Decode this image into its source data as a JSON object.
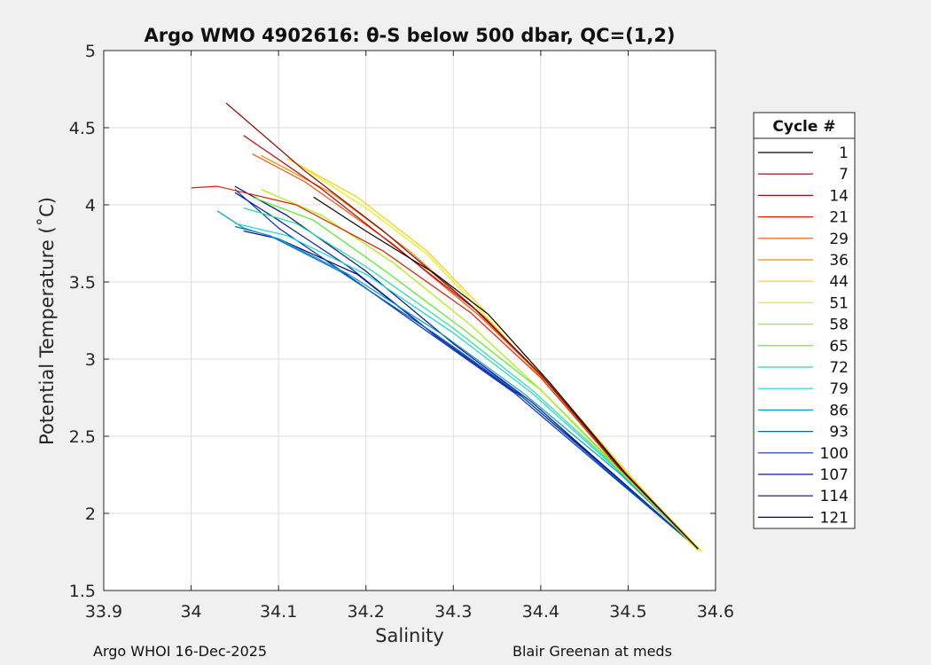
{
  "chart_data": {
    "type": "line",
    "title": "Argo WMO 4902616: θ-S below 500 dbar,  QC=(1,2)",
    "xlabel": "Salinity",
    "ylabel": "Potential Temperature (˚C)",
    "xlim": [
      33.9,
      34.6
    ],
    "ylim": [
      1.5,
      5
    ],
    "xticks": [
      "33.9",
      "34",
      "34.1",
      "34.2",
      "34.3",
      "34.4",
      "34.5",
      "34.6"
    ],
    "yticks": [
      "1.5",
      "2",
      "2.5",
      "3",
      "3.5",
      "4",
      "4.5",
      "5"
    ],
    "grid": true,
    "legend": {
      "title": "Cycle #",
      "placement": "outside-right",
      "entries": [
        {
          "label": "1",
          "color": "#000000"
        },
        {
          "label": "7",
          "color": "#8b0000"
        },
        {
          "label": "14",
          "color": "#c80000"
        },
        {
          "label": "21",
          "color": "#e01b00"
        },
        {
          "label": "29",
          "color": "#ee5200"
        },
        {
          "label": "36",
          "color": "#f08a00"
        },
        {
          "label": "44",
          "color": "#f5d000"
        },
        {
          "label": "51",
          "color": "#e8f000"
        },
        {
          "label": "58",
          "color": "#a8f000"
        },
        {
          "label": "65",
          "color": "#50ee20"
        },
        {
          "label": "72",
          "color": "#20e090"
        },
        {
          "label": "79",
          "color": "#10d6d6"
        },
        {
          "label": "86",
          "color": "#009ccc"
        },
        {
          "label": "93",
          "color": "#0060b8"
        },
        {
          "label": "100",
          "color": "#0030c0"
        },
        {
          "label": "107",
          "color": "#0018a8"
        },
        {
          "label": "114",
          "color": "#000c90"
        },
        {
          "label": "121",
          "color": "#000078"
        }
      ]
    },
    "series": [
      {
        "label": "1",
        "points": [
          [
            34.58,
            1.77
          ],
          [
            34.5,
            2.24
          ],
          [
            34.41,
            2.85
          ],
          [
            34.34,
            3.29
          ],
          [
            34.28,
            3.55
          ],
          [
            34.2,
            3.83
          ],
          [
            34.14,
            4.05
          ]
        ]
      },
      {
        "label": "7",
        "points": [
          [
            34.58,
            1.77
          ],
          [
            34.49,
            2.3
          ],
          [
            34.4,
            2.9
          ],
          [
            34.32,
            3.35
          ],
          [
            34.22,
            3.83
          ],
          [
            34.13,
            4.22
          ],
          [
            34.04,
            4.66
          ]
        ]
      },
      {
        "label": "14",
        "points": [
          [
            34.58,
            1.77
          ],
          [
            34.49,
            2.3
          ],
          [
            34.4,
            2.9
          ],
          [
            34.33,
            3.3
          ],
          [
            34.24,
            3.7
          ],
          [
            34.15,
            4.1
          ],
          [
            34.06,
            4.45
          ]
        ]
      },
      {
        "label": "21",
        "points": [
          [
            34.58,
            1.77
          ],
          [
            34.49,
            2.29
          ],
          [
            34.4,
            2.88
          ],
          [
            34.32,
            3.3
          ],
          [
            34.22,
            3.7
          ],
          [
            34.12,
            4.0
          ],
          [
            34.03,
            4.12
          ],
          [
            34.0,
            4.11
          ]
        ]
      },
      {
        "label": "29",
        "points": [
          [
            34.58,
            1.77
          ],
          [
            34.49,
            2.3
          ],
          [
            34.41,
            2.84
          ],
          [
            34.33,
            3.28
          ],
          [
            34.23,
            3.75
          ],
          [
            34.13,
            4.15
          ],
          [
            34.07,
            4.33
          ]
        ]
      },
      {
        "label": "36",
        "points": [
          [
            34.58,
            1.77
          ],
          [
            34.49,
            2.3
          ],
          [
            34.41,
            2.83
          ],
          [
            34.34,
            3.25
          ],
          [
            34.25,
            3.7
          ],
          [
            34.16,
            4.08
          ],
          [
            34.08,
            4.32
          ]
        ]
      },
      {
        "label": "44",
        "points": [
          [
            34.58,
            1.76
          ],
          [
            34.5,
            2.26
          ],
          [
            34.42,
            2.78
          ],
          [
            34.35,
            3.23
          ],
          [
            34.27,
            3.7
          ],
          [
            34.19,
            4.05
          ],
          [
            34.11,
            4.3
          ]
        ]
      },
      {
        "label": "51",
        "points": [
          [
            34.585,
            1.75
          ],
          [
            34.5,
            2.25
          ],
          [
            34.42,
            2.75
          ],
          [
            34.35,
            3.2
          ],
          [
            34.27,
            3.68
          ],
          [
            34.2,
            3.98
          ],
          [
            34.12,
            4.27
          ]
        ]
      },
      {
        "label": "58",
        "points": [
          [
            34.58,
            1.76
          ],
          [
            34.49,
            2.28
          ],
          [
            34.4,
            2.8
          ],
          [
            34.32,
            3.22
          ],
          [
            34.23,
            3.63
          ],
          [
            34.15,
            3.93
          ],
          [
            34.08,
            4.1
          ]
        ]
      },
      {
        "label": "65",
        "points": [
          [
            34.58,
            1.77
          ],
          [
            34.49,
            2.29
          ],
          [
            34.4,
            2.8
          ],
          [
            34.31,
            3.2
          ],
          [
            34.22,
            3.58
          ],
          [
            34.14,
            3.9
          ],
          [
            34.07,
            4.05
          ]
        ]
      },
      {
        "label": "72",
        "points": [
          [
            34.58,
            1.77
          ],
          [
            34.49,
            2.28
          ],
          [
            34.39,
            2.8
          ],
          [
            34.3,
            3.2
          ],
          [
            34.2,
            3.6
          ],
          [
            34.12,
            3.88
          ],
          [
            34.06,
            3.98
          ]
        ]
      },
      {
        "label": "79",
        "points": [
          [
            34.58,
            1.77
          ],
          [
            34.49,
            2.27
          ],
          [
            34.39,
            2.78
          ],
          [
            34.3,
            3.17
          ],
          [
            34.2,
            3.55
          ],
          [
            34.11,
            3.8
          ],
          [
            34.05,
            3.88
          ]
        ]
      },
      {
        "label": "86",
        "points": [
          [
            34.58,
            1.77
          ],
          [
            34.49,
            2.26
          ],
          [
            34.38,
            2.78
          ],
          [
            34.29,
            3.15
          ],
          [
            34.18,
            3.55
          ],
          [
            34.1,
            3.78
          ],
          [
            34.06,
            3.85
          ],
          [
            34.03,
            3.96
          ]
        ]
      },
      {
        "label": "93",
        "points": [
          [
            34.58,
            1.77
          ],
          [
            34.48,
            2.26
          ],
          [
            34.37,
            2.8
          ],
          [
            34.28,
            3.16
          ],
          [
            34.17,
            3.57
          ],
          [
            34.09,
            3.8
          ],
          [
            34.05,
            3.86
          ]
        ]
      },
      {
        "label": "100",
        "points": [
          [
            34.58,
            1.77
          ],
          [
            34.48,
            2.25
          ],
          [
            34.37,
            2.78
          ],
          [
            34.27,
            3.18
          ],
          [
            34.17,
            3.58
          ],
          [
            34.1,
            3.85
          ],
          [
            34.05,
            4.1
          ]
        ]
      },
      {
        "label": "107",
        "points": [
          [
            34.58,
            1.77
          ],
          [
            34.48,
            2.26
          ],
          [
            34.38,
            2.75
          ],
          [
            34.28,
            3.15
          ],
          [
            34.18,
            3.6
          ],
          [
            34.1,
            3.9
          ],
          [
            34.05,
            4.08
          ]
        ]
      },
      {
        "label": "114",
        "points": [
          [
            34.58,
            1.77
          ],
          [
            34.48,
            2.27
          ],
          [
            34.39,
            2.72
          ],
          [
            34.3,
            3.1
          ],
          [
            34.2,
            3.57
          ],
          [
            34.11,
            3.93
          ],
          [
            34.05,
            4.12
          ]
        ]
      },
      {
        "label": "121",
        "points": [
          [
            34.58,
            1.77
          ],
          [
            34.48,
            2.27
          ],
          [
            34.38,
            2.75
          ],
          [
            34.28,
            3.15
          ],
          [
            34.19,
            3.55
          ],
          [
            34.1,
            3.78
          ],
          [
            34.06,
            3.83
          ]
        ]
      }
    ]
  },
  "footer": {
    "left": "Argo WHOI 16-Dec-2025",
    "right": "Blair Greenan at meds"
  }
}
